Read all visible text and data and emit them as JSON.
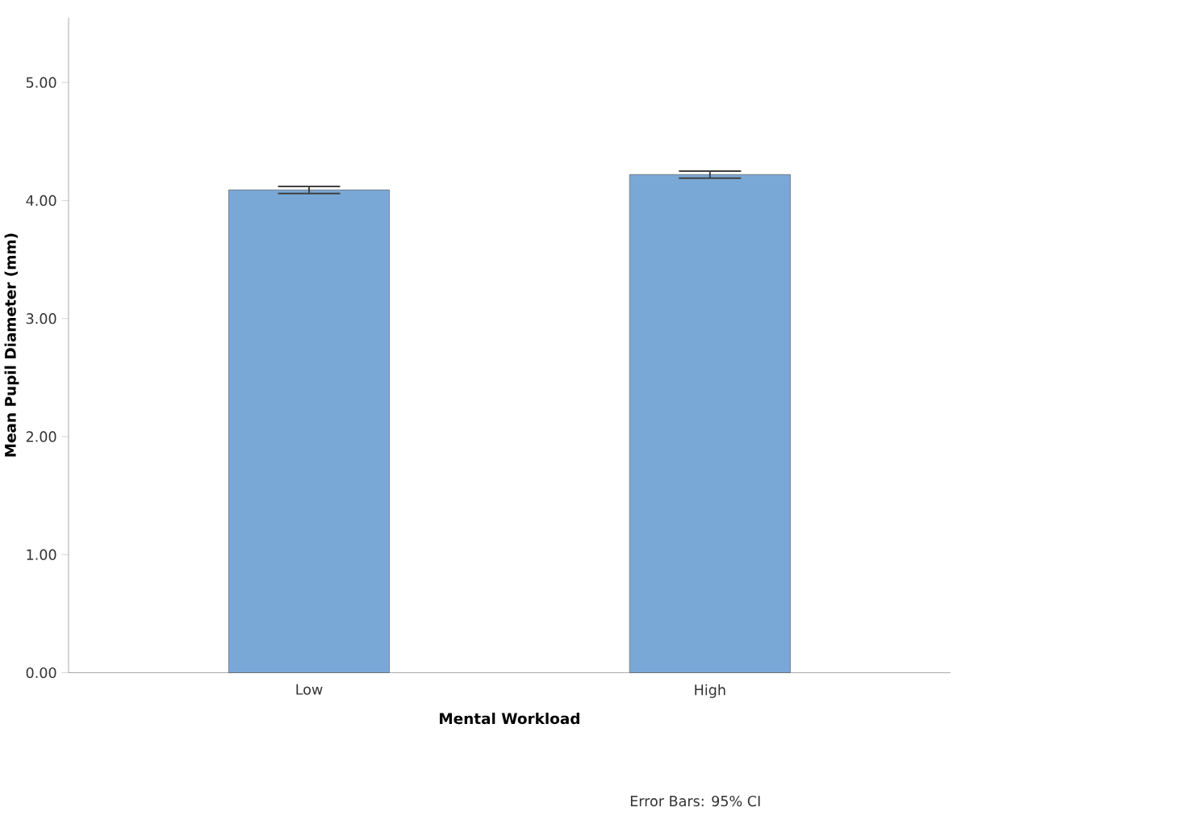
{
  "chart_data": {
    "type": "bar",
    "xlabel": "Mental Workload",
    "ylabel": "Mean Pupil Diameter (mm)",
    "categories": [
      "Low",
      "High"
    ],
    "values": [
      4.09,
      4.22
    ],
    "errors": [
      [
        4.06,
        4.12
      ],
      [
        4.19,
        4.25
      ]
    ],
    "color": "#7aa8d6",
    "ylim": [
      0,
      5.55
    ],
    "yticks": [
      {
        "value": 0,
        "label": "0.00"
      },
      {
        "value": 1,
        "label": "1.00"
      },
      {
        "value": 2,
        "label": "2.00"
      },
      {
        "value": 3,
        "label": "3.00"
      },
      {
        "value": 4,
        "label": "4.00"
      },
      {
        "value": 5,
        "label": "5.00"
      }
    ],
    "grid": false,
    "annotations": [
      "Error Bars: 95% CI"
    ]
  }
}
